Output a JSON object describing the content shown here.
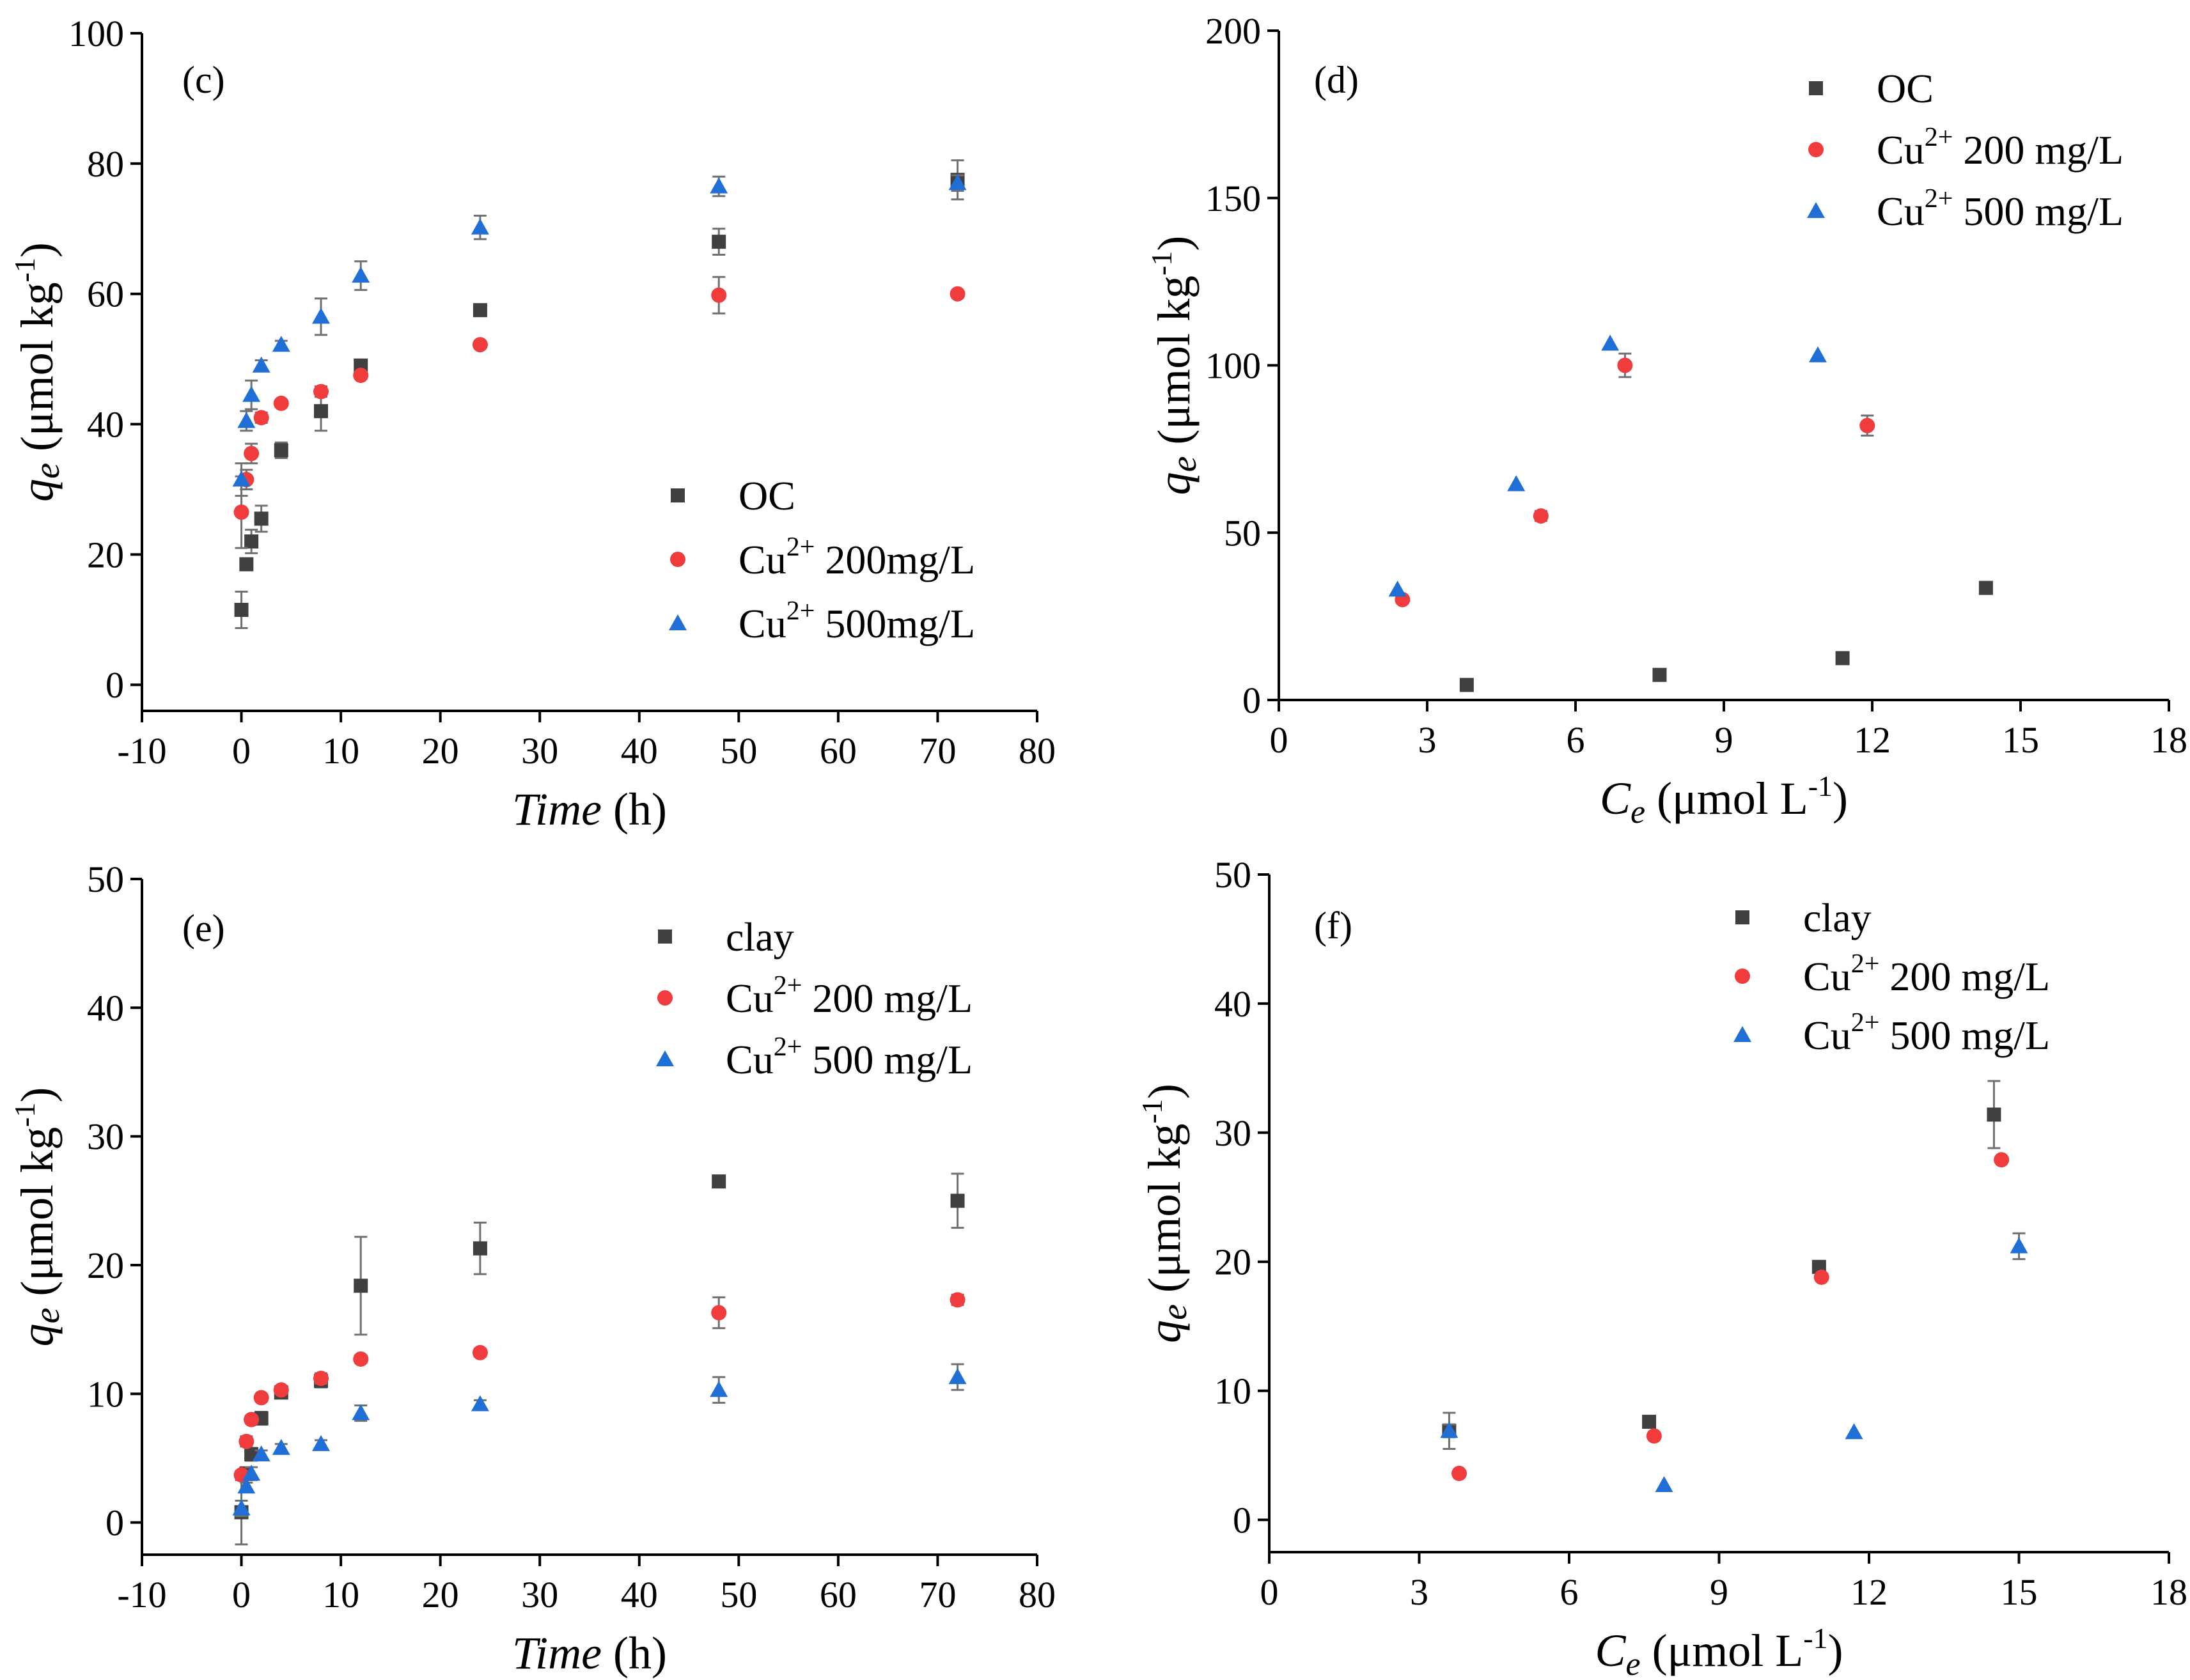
{
  "colors": {
    "OC": "#404040",
    "clay": "#404040",
    "Cu200": "#f03c3c",
    "Cu500": "#1f6fd6",
    "error": "#707070"
  },
  "chart_data": [
    {
      "panel": "c",
      "type": "scatter",
      "panel_label": "(c)",
      "xlabel_italic": "Time",
      "xlabel_rest": " (h)",
      "ylabel_sym": "q",
      "ylabel_sub": "e",
      "ylabel_rest": " (μmol kg",
      "ylabel_sup": "-1",
      "ylabel_close": ")",
      "xlim": [
        -10,
        80
      ],
      "ylim": [
        -4,
        100
      ],
      "xticks": [
        -10,
        0,
        10,
        20,
        30,
        40,
        50,
        60,
        70,
        80
      ],
      "yticks": [
        0,
        20,
        40,
        60,
        80,
        100
      ],
      "legend_pos": "center-right",
      "series": [
        {
          "name": "OC",
          "name_sup": "",
          "name_rest": "",
          "marker": "square",
          "color_key": "OC",
          "x": [
            0,
            0.5,
            1,
            2,
            4,
            8,
            12,
            24,
            48,
            72
          ],
          "y": [
            11.5,
            18.5,
            22,
            25.5,
            36,
            42,
            49,
            57.5,
            68,
            77.5
          ],
          "err": [
            2.8,
            0.8,
            1.8,
            2.0,
            1.2,
            3.0,
            0.6,
            0.4,
            2.0,
            3.0
          ]
        },
        {
          "name": "Cu",
          "name_sup": "2+",
          "name_rest": " 200mg/L",
          "marker": "circle",
          "color_key": "Cu200",
          "x": [
            0,
            0.5,
            1,
            2,
            4,
            8,
            12,
            24,
            48,
            72
          ],
          "y": [
            26.5,
            31.5,
            35.5,
            41,
            43.2,
            45,
            47.5,
            52.2,
            59.8,
            60
          ],
          "err": [
            5.5,
            1.5,
            1.5,
            0.8,
            0.5,
            0.8,
            0.5,
            0.4,
            2.8,
            0.4
          ]
        },
        {
          "name": "Cu",
          "name_sup": "2+",
          "name_rest": " 500mg/L",
          "marker": "triangle",
          "color_key": "Cu500",
          "x": [
            0,
            0.5,
            1,
            2,
            4,
            8,
            12,
            24,
            48,
            72
          ],
          "y": [
            31.5,
            40.5,
            44.5,
            49,
            52.2,
            56.5,
            62.8,
            70.2,
            76.5,
            77
          ],
          "err": [
            2.5,
            1.5,
            2.2,
            0.8,
            0.6,
            2.8,
            2.2,
            1.8,
            1.5,
            1.2
          ]
        }
      ]
    },
    {
      "panel": "d",
      "type": "scatter",
      "panel_label": "(d)",
      "xlabel_sym": "C",
      "xlabel_sub": "e",
      "xlabel_rest": " (μmol L",
      "xlabel_sup": "-1",
      "xlabel_close": ")",
      "ylabel_sym": "q",
      "ylabel_sub": "e",
      "ylabel_rest": " (μmol kg",
      "ylabel_sup": "-1",
      "ylabel_close": ")",
      "xlim": [
        0,
        18
      ],
      "ylim": [
        0,
        200
      ],
      "xticks": [
        0,
        3,
        6,
        9,
        12,
        15,
        18
      ],
      "yticks": [
        0,
        50,
        100,
        150,
        200
      ],
      "legend_pos": "top-right",
      "series": [
        {
          "name": "OC",
          "name_sup": "",
          "name_rest": "",
          "marker": "square",
          "color_key": "OC",
          "x": [
            3.8,
            7.7,
            11.4,
            14.3
          ],
          "y": [
            4.5,
            7.5,
            12.5,
            33.5
          ],
          "err": [
            0,
            0,
            0,
            0
          ]
        },
        {
          "name": "Cu",
          "name_sup": "2+",
          "name_rest": " 200 mg/L",
          "marker": "circle",
          "color_key": "Cu200",
          "x": [
            2.5,
            5.3,
            7.0,
            11.9
          ],
          "y": [
            30,
            55,
            100,
            82
          ],
          "err": [
            0,
            1.5,
            3.5,
            3.0
          ]
        },
        {
          "name": "Cu",
          "name_sup": "2+",
          "name_rest": " 500 mg/L",
          "marker": "triangle",
          "color_key": "Cu500",
          "x": [
            2.4,
            4.8,
            6.7,
            10.9
          ],
          "y": [
            33,
            64.5,
            106.5,
            103
          ],
          "err": [
            0,
            0,
            0,
            0
          ]
        }
      ]
    },
    {
      "panel": "e",
      "type": "scatter",
      "panel_label": "(e)",
      "xlabel_italic": "Time",
      "xlabel_rest": " (h)",
      "ylabel_sym": "q",
      "ylabel_sub": "e",
      "ylabel_rest": " (μmol kg",
      "ylabel_sup": "-1",
      "ylabel_close": ")",
      "xlim": [
        -10,
        80
      ],
      "ylim": [
        -2.5,
        50
      ],
      "xticks": [
        -10,
        0,
        10,
        20,
        30,
        40,
        50,
        60,
        70,
        80
      ],
      "yticks": [
        0,
        10,
        20,
        30,
        40,
        50
      ],
      "legend_pos": "top-right",
      "series": [
        {
          "name": "clay",
          "name_sup": "",
          "name_rest": "",
          "marker": "square",
          "color_key": "clay",
          "x": [
            0,
            0.5,
            1,
            2,
            4,
            8,
            12,
            24,
            48,
            72
          ],
          "y": [
            0.8,
            3.8,
            5.3,
            8.1,
            10.1,
            11.0,
            18.4,
            21.3,
            26.5,
            25
          ],
          "err": [
            2.5,
            0.5,
            0.5,
            0.5,
            0.4,
            0.5,
            3.8,
            2.0,
            0.3,
            2.1
          ]
        },
        {
          "name": "Cu",
          "name_sup": "2+",
          "name_rest": " 200 mg/L",
          "marker": "circle",
          "color_key": "Cu200",
          "x": [
            0,
            0.5,
            1,
            2,
            4,
            8,
            12,
            24,
            48,
            72
          ],
          "y": [
            3.7,
            6.3,
            8.0,
            9.7,
            10.3,
            11.2,
            12.7,
            13.2,
            16.3,
            17.3
          ],
          "err": [
            0.3,
            0.4,
            0.3,
            0.3,
            0.3,
            0.4,
            0.3,
            0.3,
            1.2,
            0.4
          ]
        },
        {
          "name": "Cu",
          "name_sup": "2+",
          "name_rest": " 500 mg/L",
          "marker": "triangle",
          "color_key": "Cu500",
          "x": [
            0,
            0.5,
            1,
            2,
            4,
            8,
            12,
            24,
            48,
            72
          ],
          "y": [
            1.1,
            2.8,
            3.8,
            5.3,
            5.8,
            6.1,
            8.5,
            9.2,
            10.3,
            11.3
          ],
          "err": [
            0.6,
            0.3,
            0.5,
            0.3,
            0.3,
            0.3,
            0.6,
            0.3,
            1.0,
            1.0
          ]
        }
      ]
    },
    {
      "panel": "f",
      "type": "scatter",
      "panel_label": "(f)",
      "xlabel_sym": "C",
      "xlabel_sub": "e",
      "xlabel_rest": " (μmol L",
      "xlabel_sup": "-1",
      "xlabel_close": ")",
      "ylabel_sym": "q",
      "ylabel_sub": "e",
      "ylabel_rest": " (μmol kg",
      "ylabel_sup": "-1",
      "ylabel_close": ")",
      "xlim": [
        0,
        18
      ],
      "ylim": [
        -2.5,
        50
      ],
      "xticks": [
        0,
        3,
        6,
        9,
        12,
        15,
        18
      ],
      "yticks": [
        0,
        10,
        20,
        30,
        40,
        50
      ],
      "legend_pos": "top-right",
      "series": [
        {
          "name": "clay",
          "name_sup": "",
          "name_rest": "",
          "marker": "square",
          "color_key": "clay",
          "x": [
            3.6,
            7.6,
            11.0,
            14.5
          ],
          "y": [
            6.9,
            7.6,
            19.6,
            31.4
          ],
          "err": [
            1.4,
            0,
            0,
            2.6
          ]
        },
        {
          "name": "Cu",
          "name_sup": "2+",
          "name_rest": " 200 mg/L",
          "marker": "circle",
          "color_key": "Cu200",
          "x": [
            3.8,
            7.7,
            11.05,
            14.65
          ],
          "y": [
            3.6,
            6.5,
            18.8,
            27.9
          ],
          "err": [
            0,
            0,
            0,
            0
          ]
        },
        {
          "name": "Cu",
          "name_sup": "2+",
          "name_rest": " 500 mg/L",
          "marker": "triangle",
          "color_key": "Cu500",
          "x": [
            3.6,
            7.9,
            11.7,
            15.0
          ],
          "y": [
            6.9,
            2.7,
            6.8,
            21.2
          ],
          "err": [
            0.5,
            0,
            0,
            1.0
          ]
        }
      ]
    }
  ]
}
